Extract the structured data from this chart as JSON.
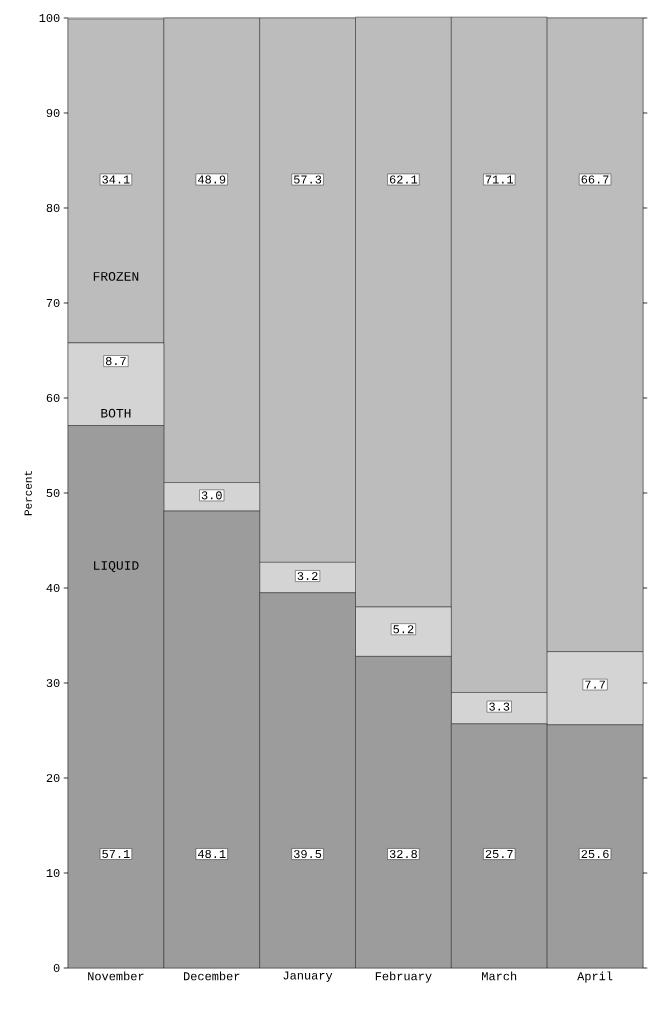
{
  "chart_data": {
    "type": "bar",
    "stacked": true,
    "ylabel": "Percent",
    "categories": [
      "November",
      "December",
      "January",
      "February",
      "March",
      "April"
    ],
    "series": [
      {
        "name": "LIQUID",
        "color": "#9c9c9c",
        "values": [
          57.1,
          48.1,
          39.5,
          32.8,
          25.7,
          25.6
        ],
        "value_labels": [
          "57.1",
          "48.1",
          "39.5",
          "32.8",
          "25.7",
          "25.6"
        ]
      },
      {
        "name": "BOTH",
        "color": "#d4d4d4",
        "values": [
          8.7,
          3.0,
          3.2,
          5.2,
          3.3,
          7.7
        ],
        "value_labels": [
          "8.7",
          "3.0",
          "3.2",
          "5.2",
          "3.3",
          "7.7"
        ]
      },
      {
        "name": "FROZEN",
        "color": "#bcbcbc",
        "values": [
          34.1,
          48.9,
          57.3,
          62.1,
          71.1,
          66.7
        ],
        "value_labels": [
          "34.1",
          "48.9",
          "57.3",
          "62.1",
          "71.1",
          "66.7"
        ]
      }
    ],
    "ylim": [
      0,
      100
    ],
    "yticks": [
      0,
      10,
      20,
      30,
      40,
      50,
      60,
      70,
      80,
      90,
      100
    ],
    "grid": false,
    "legend": false
  }
}
